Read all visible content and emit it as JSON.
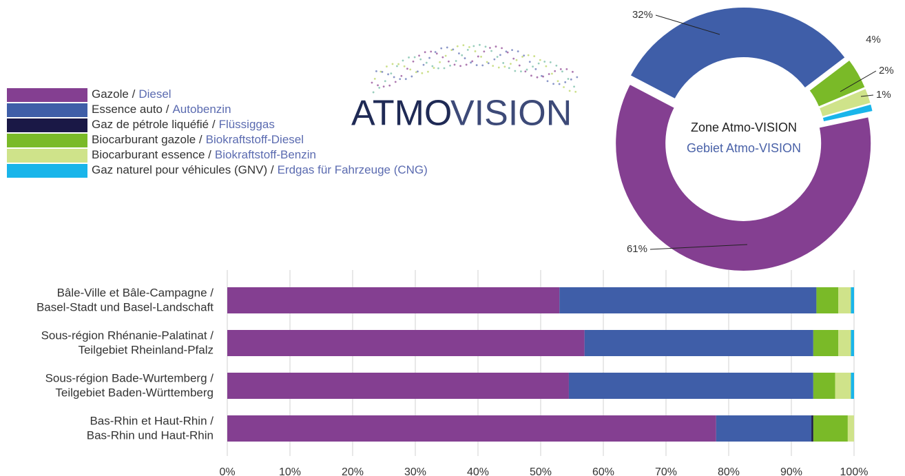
{
  "logo": {
    "part_1": "ATMO",
    "part_2": "VISION"
  },
  "chart_data": [
    {
      "type": "pie",
      "center_title": "Zone Atmo-VISION",
      "center_subtitle": "Gebiet Atmo-VISION",
      "values": [
        61,
        32,
        4,
        2,
        1
      ],
      "value_labels": [
        "61%",
        "32%",
        "4%",
        "2%",
        "1%"
      ],
      "colors": [
        "#843f91",
        "#3f5ea8",
        "#7aba28",
        "#cfe38a",
        "#19b5ea"
      ]
    },
    {
      "type": "bar",
      "orientation": "horizontal",
      "stacked": true,
      "grid": true,
      "categories": [
        [
          "Bâle-Ville et Bâle-Campagne /",
          "Basel-Stadt und Basel-Landschaft"
        ],
        [
          "Sous-région Rhénanie-Palatinat /",
          "Teilgebiet Rheinland-Pfalz"
        ],
        [
          "Sous-région Bade-Wurtemberg /",
          "Teilgebiet Baden-Württemberg"
        ],
        [
          "Bas-Rhin et Haut-Rhin /",
          "Bas-Rhin und Haut-Rhin"
        ]
      ],
      "series": [
        {
          "name": "Gazole /",
          "name_de": "Diesel",
          "color": "#843f91",
          "values": [
            53,
            57,
            54.5,
            78
          ]
        },
        {
          "name": "Essence auto /",
          "name_de": "Autobenzin",
          "color": "#3f5ea8",
          "values": [
            41,
            36.5,
            39,
            15.2
          ]
        },
        {
          "name": "Gaz de pétrole liquéfié /",
          "name_de": "Flüssiggas",
          "color": "#1a1846",
          "values": [
            0,
            0,
            0,
            0.3
          ]
        },
        {
          "name": "Biocarburant gazole /",
          "name_de": "Biokraftstoff-Diesel",
          "color": "#7aba28",
          "values": [
            3.5,
            4,
            3.5,
            5.5
          ]
        },
        {
          "name": "Biocarburant essence /",
          "name_de": "Biokraftstoff-Benzin",
          "color": "#cfe38a",
          "values": [
            2,
            2,
            2.5,
            1
          ]
        },
        {
          "name": "Gaz naturel pour véhicules (GNV) /",
          "name_de": "Erdgas für Fahrzeuge (CNG)",
          "color": "#19b5ea",
          "values": [
            0.5,
            0.5,
            0.5,
            0
          ]
        }
      ],
      "xlim": [
        0,
        100
      ],
      "xticks": [
        {
          "value": 0,
          "label": "0%"
        },
        {
          "value": 10,
          "label": "10%"
        },
        {
          "value": 20,
          "label": "20%"
        },
        {
          "value": 30,
          "label": "30%"
        },
        {
          "value": 40,
          "label": "40%"
        },
        {
          "value": 50,
          "label": "50%"
        },
        {
          "value": 60,
          "label": "60%"
        },
        {
          "value": 70,
          "label": "70%"
        },
        {
          "value": 80,
          "label": "80%"
        },
        {
          "value": 90,
          "label": "90%"
        },
        {
          "value": 100,
          "label": "100%"
        }
      ]
    }
  ]
}
